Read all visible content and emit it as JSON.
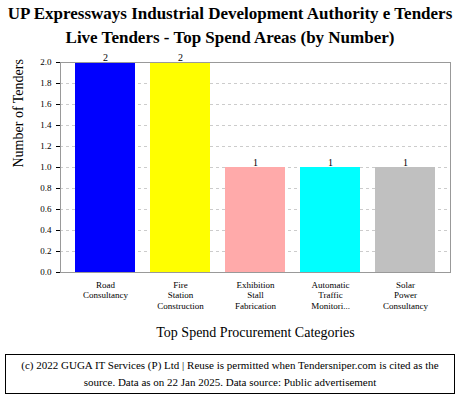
{
  "chart_data": {
    "type": "bar",
    "title": "UP Expressways Industrial Development Authority e Tenders Live Tenders - Top Spend Areas (by Number)",
    "x_label": "Top Spend Procurement Categories",
    "y_label": "Number of Tenders",
    "caption": "(c) 2022 GUGA IT Services (P) Ltd | Reuse is permitted when Tendersniper.com is cited as the source. Data as on 22 Jan 2025. Data source: Public advertisement",
    "categories": [
      "Road Consultancy",
      "Fire Station Construction",
      "Exhibition Stall Fabrication",
      "Automatic Traffic Monitori...",
      "Solar Power Consultancy"
    ],
    "values": [
      2,
      2,
      1,
      1,
      1
    ],
    "colors": [
      "#0000ff",
      "#ffff00",
      "#ffaaaa",
      "#00ffff",
      "#c0c0c0"
    ],
    "ylim": [
      0,
      2
    ],
    "yticks": [
      {
        "value": 0,
        "label": "0.0"
      },
      {
        "value": 0.2,
        "label": "0.2"
      },
      {
        "value": 0.4,
        "label": "0.4"
      },
      {
        "value": 0.6,
        "label": "0.6"
      },
      {
        "value": 0.8,
        "label": "0.8"
      },
      {
        "value": 1,
        "label": "1.0"
      },
      {
        "value": 1.2,
        "label": "1.2"
      },
      {
        "value": 1.4,
        "label": "1.4"
      },
      {
        "value": 1.6,
        "label": "1.6"
      },
      {
        "value": 1.8,
        "label": "1.8"
      },
      {
        "value": 2,
        "label": "2.0"
      }
    ],
    "grid": true,
    "data_labels": true
  }
}
